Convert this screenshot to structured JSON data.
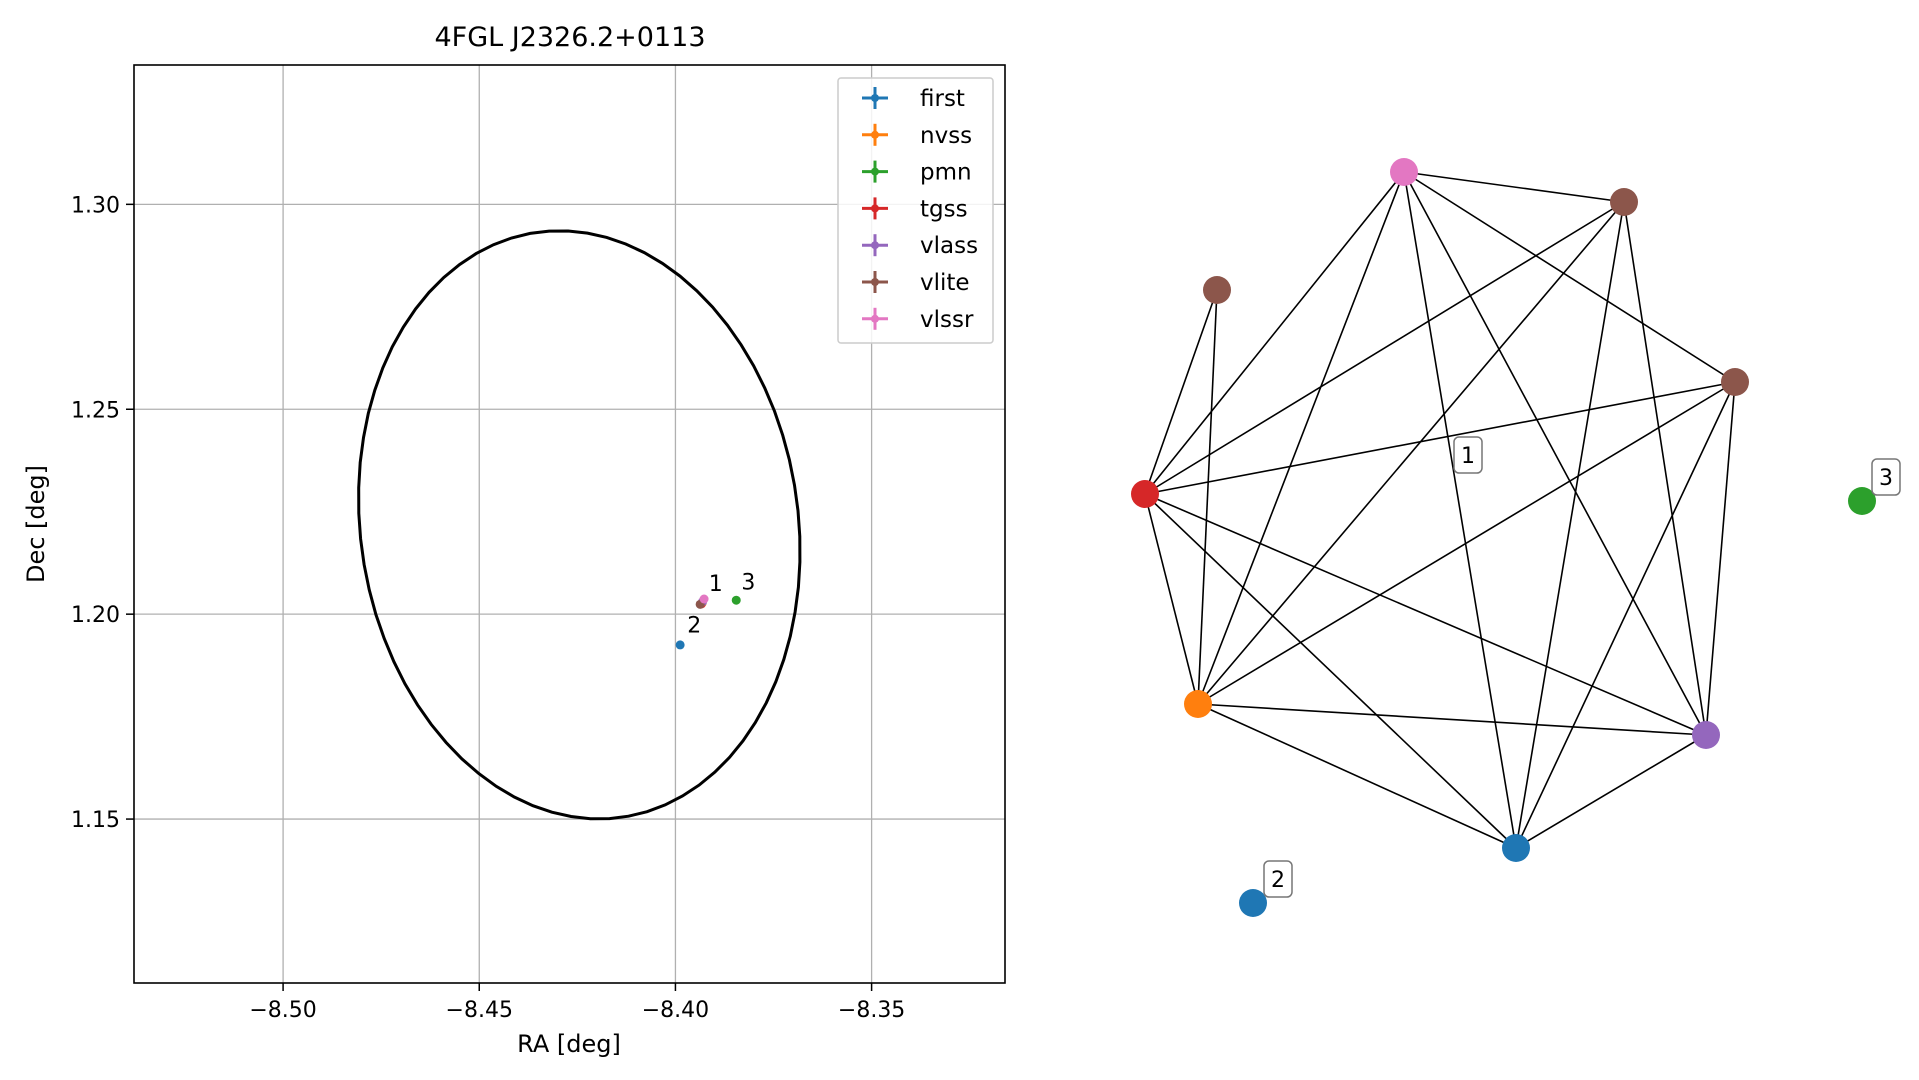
{
  "chart_data": [
    {
      "type": "scatter",
      "title": "4FGL J2326.2+0113",
      "xlabel": "RA [deg]",
      "ylabel": "Dec [deg]",
      "xlim": [
        -8.538,
        -8.316
      ],
      "ylim": [
        1.11,
        1.334
      ],
      "xticks": [
        -8.5,
        -8.45,
        -8.4,
        -8.35
      ],
      "xtick_labels": [
        "−8.50",
        "−8.45",
        "−8.40",
        "−8.35"
      ],
      "yticks": [
        1.15,
        1.2,
        1.25,
        1.3
      ],
      "ytick_labels": [
        "1.15",
        "1.20",
        "1.25",
        "1.30"
      ],
      "grid": true,
      "legend_position": "top-right",
      "ellipse": {
        "center": [
          -8.4245,
          1.2218
        ],
        "semi_major": 0.0722,
        "semi_minor": 0.0557,
        "angle_deg": -80,
        "color": "#000000"
      },
      "series": [
        {
          "name": "first",
          "color": "#1f77b4",
          "points": [
            {
              "x": -8.3988,
              "y": 1.1925
            }
          ]
        },
        {
          "name": "nvss",
          "color": "#ff7f0e",
          "points": [
            {
              "x": -8.3932,
              "y": 1.2027
            }
          ]
        },
        {
          "name": "pmn",
          "color": "#2ca02c",
          "points": [
            {
              "x": -8.3845,
              "y": 1.2034
            }
          ]
        },
        {
          "name": "tgss",
          "color": "#d62728",
          "points": [
            {
              "x": -8.3934,
              "y": 1.2025
            }
          ]
        },
        {
          "name": "vlass",
          "color": "#9467bd",
          "points": [
            {
              "x": -8.3931,
              "y": 1.203
            }
          ]
        },
        {
          "name": "vlite",
          "color": "#8c564b",
          "points": [
            {
              "x": -8.3937,
              "y": 1.2024
            }
          ]
        },
        {
          "name": "vlssr",
          "color": "#e377c2",
          "points": [
            {
              "x": -8.3927,
              "y": 1.2037
            }
          ]
        }
      ],
      "annotations": [
        {
          "text": "1",
          "x": -8.3915,
          "y": 1.2057
        },
        {
          "text": "2",
          "x": -8.397,
          "y": 1.1955
        },
        {
          "text": "3",
          "x": -8.3832,
          "y": 1.206
        }
      ]
    },
    {
      "type": "network",
      "nodes": [
        {
          "id": "first",
          "color": "#1f77b4"
        },
        {
          "id": "nvss",
          "color": "#ff7f0e"
        },
        {
          "id": "tgss",
          "color": "#d62728"
        },
        {
          "id": "vlite_a",
          "color": "#8c564b"
        },
        {
          "id": "vlssr",
          "color": "#e377c2"
        },
        {
          "id": "vlite_b",
          "color": "#8c564b"
        },
        {
          "id": "vlite_c",
          "color": "#8c564b"
        },
        {
          "id": "vlass",
          "color": "#9467bd"
        },
        {
          "id": "pmn",
          "color": "#2ca02c"
        },
        {
          "id": "first_2",
          "color": "#1f77b4"
        }
      ],
      "edges": [
        [
          "tgss",
          "vlite_a"
        ],
        [
          "tgss",
          "vlssr"
        ],
        [
          "tgss",
          "vlite_b"
        ],
        [
          "tgss",
          "vlite_c"
        ],
        [
          "tgss",
          "nvss"
        ],
        [
          "tgss",
          "vlass"
        ],
        [
          "tgss",
          "first"
        ],
        [
          "vlite_a",
          "nvss"
        ],
        [
          "vlssr",
          "vlite_b"
        ],
        [
          "vlssr",
          "nvss"
        ],
        [
          "vlssr",
          "first"
        ],
        [
          "vlssr",
          "vlass"
        ],
        [
          "vlssr",
          "vlite_c"
        ],
        [
          "vlite_b",
          "nvss"
        ],
        [
          "vlite_b",
          "first"
        ],
        [
          "vlite_b",
          "vlass"
        ],
        [
          "vlite_c",
          "nvss"
        ],
        [
          "vlite_c",
          "first"
        ],
        [
          "vlite_c",
          "vlass"
        ],
        [
          "nvss",
          "vlass"
        ],
        [
          "nvss",
          "first"
        ],
        [
          "first",
          "vlass"
        ]
      ],
      "group_labels": [
        {
          "text": "1",
          "group": "main"
        },
        {
          "text": "2",
          "group": "first_2"
        },
        {
          "text": "3",
          "group": "pmn"
        }
      ]
    }
  ]
}
